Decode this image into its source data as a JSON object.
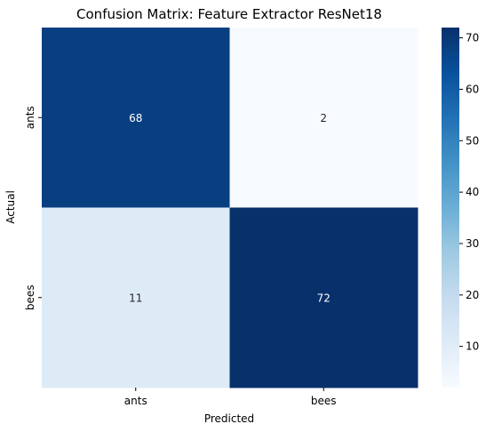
{
  "chart_data": {
    "type": "heatmap",
    "title": "Confusion Matrix: Feature Extractor ResNet18",
    "xlabel": "Predicted",
    "ylabel": "Actual",
    "x_categories": [
      "ants",
      "bees"
    ],
    "y_categories": [
      "ants",
      "bees"
    ],
    "values": [
      [
        68,
        2
      ],
      [
        11,
        72
      ]
    ],
    "colormap": "Blues",
    "colorbar": {
      "range": [
        2,
        72
      ],
      "ticks": [
        10,
        20,
        30,
        40,
        50,
        60,
        70
      ]
    },
    "annotations": true,
    "grid": false
  },
  "colors": {
    "text_dark": "#262626",
    "text_light": "#ffffff",
    "axis": "#000000"
  }
}
